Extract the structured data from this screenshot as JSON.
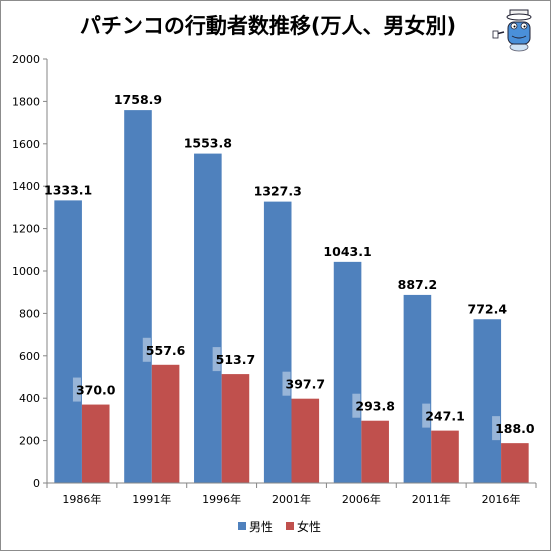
{
  "chart_data": {
    "type": "bar",
    "title": "パチンコの行動者数推移(万人、男女別)",
    "categories": [
      "1986年",
      "1991年",
      "1996年",
      "2001年",
      "2006年",
      "2011年",
      "2016年"
    ],
    "series": [
      {
        "name": "男性",
        "color": "#4f81bd",
        "values": [
          1333.1,
          1758.9,
          1553.8,
          1327.3,
          1043.1,
          887.2,
          772.4
        ],
        "labels": [
          "1333.1",
          "1758.9",
          "1553.8",
          "1327.3",
          "1043.1",
          "887.2",
          "772.4"
        ]
      },
      {
        "name": "女性",
        "color": "#c0504d",
        "values": [
          370.0,
          557.6,
          513.7,
          397.7,
          293.8,
          247.1,
          188.0
        ],
        "labels": [
          "370.0",
          "557.6",
          "513.7",
          "397.7",
          "293.8",
          "247.1",
          "188.0"
        ]
      }
    ],
    "yticks": [
      0,
      200,
      400,
      600,
      800,
      1000,
      1200,
      1400,
      1600,
      1800,
      2000
    ],
    "ytick_labels": [
      "0",
      "200",
      "400",
      "600",
      "800",
      "1000",
      "1200",
      "1400",
      "1600",
      "1800",
      "2000"
    ],
    "ylim": [
      0,
      2000
    ],
    "grid": false,
    "legend": "bottom",
    "mascot_icon": "mascot-character-icon"
  }
}
